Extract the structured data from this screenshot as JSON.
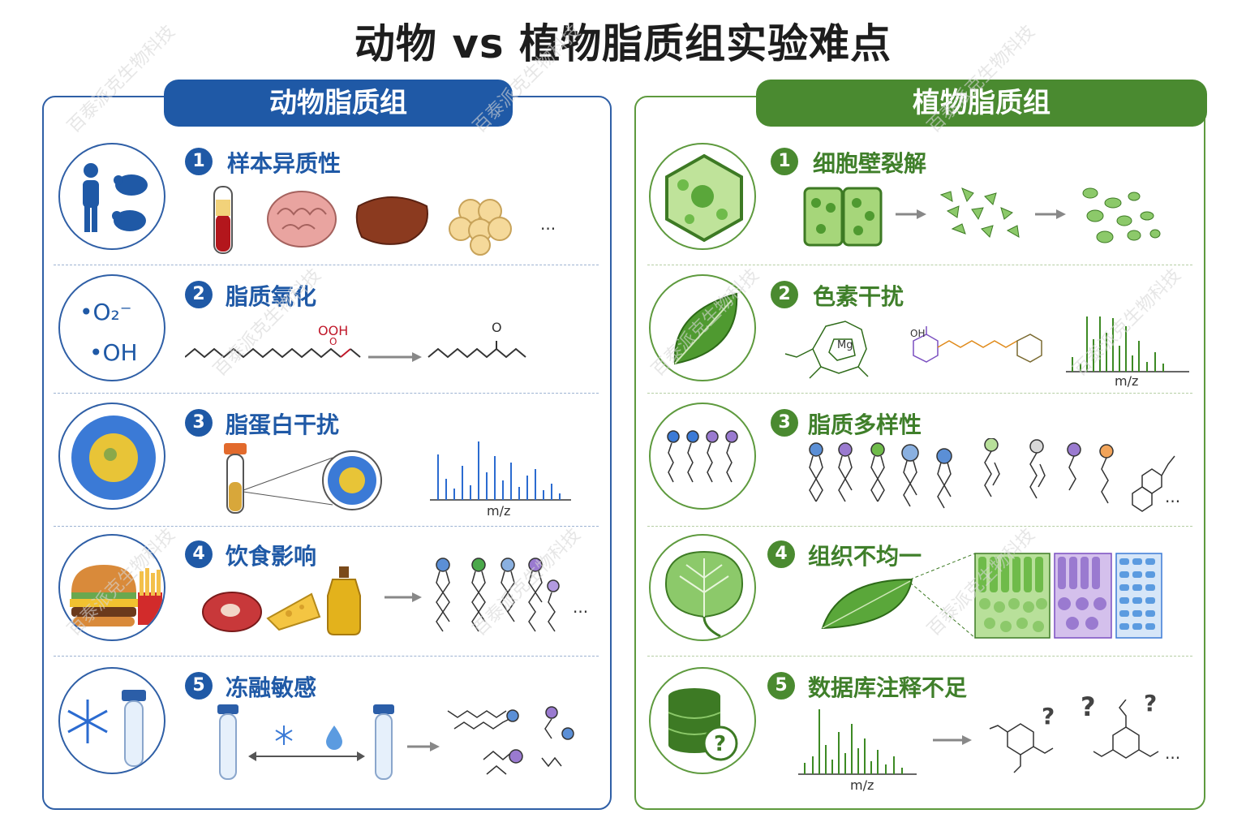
{
  "title": "动物 vs 植物脂质组实验难点",
  "animal": {
    "heading": "动物脂质组",
    "items": [
      {
        "num": "1",
        "label": "样本异质性",
        "ellipsis": "..."
      },
      {
        "num": "2",
        "label": "脂质氧化",
        "radical_o2": "•O₂⁻",
        "radical_oh": "•OH",
        "ooh": "OOH",
        "o1": "O",
        "o2": "O"
      },
      {
        "num": "3",
        "label": "脂蛋白干扰",
        "mz": "m/z"
      },
      {
        "num": "4",
        "label": "饮食影响",
        "ellipsis": "..."
      },
      {
        "num": "5",
        "label": "冻融敏感"
      }
    ]
  },
  "plant": {
    "heading": "植物脂质组",
    "items": [
      {
        "num": "1",
        "label": "细胞壁裂解"
      },
      {
        "num": "2",
        "label": "色素干扰",
        "mg": "Mg",
        "oh": "OH",
        "mz": "m/z"
      },
      {
        "num": "3",
        "label": "脂质多样性",
        "ellipsis": "..."
      },
      {
        "num": "4",
        "label": "组织不均一"
      },
      {
        "num": "5",
        "label": "数据库注释不足",
        "mz": "m/z",
        "q": "?",
        "ellipsis": "..."
      }
    ]
  },
  "watermark": "百泰派克生物科技"
}
